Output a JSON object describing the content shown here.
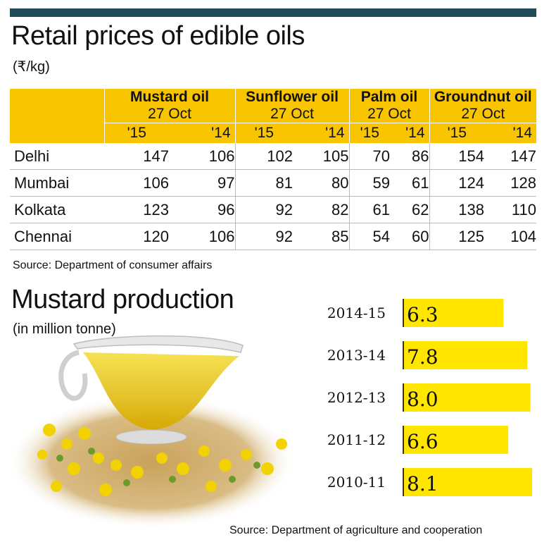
{
  "table": {
    "title": "Retail prices of edible oils",
    "unit": "(₹/kg)",
    "date": "27 Oct",
    "oils": [
      "Mustard oil",
      "Sunflower oil",
      "Palm oil",
      "Groundnut oil"
    ],
    "years": [
      "'15",
      "'14"
    ],
    "rows": [
      {
        "city": "Delhi",
        "values": [
          "147",
          "106",
          "102",
          "105",
          "70",
          "86",
          "154",
          "147"
        ]
      },
      {
        "city": "Mumbai",
        "values": [
          "106",
          "97",
          "81",
          "80",
          "59",
          "61",
          "124",
          "128"
        ]
      },
      {
        "city": "Kolkata",
        "values": [
          "123",
          "96",
          "92",
          "82",
          "61",
          "62",
          "138",
          "110"
        ]
      },
      {
        "city": "Chennai",
        "values": [
          "120",
          "106",
          "92",
          "85",
          "54",
          "60",
          "125",
          "104"
        ]
      }
    ],
    "source": "Source: Department of consumer affairs"
  },
  "production": {
    "title": "Mustard production",
    "unit": "(in million tonne)",
    "source": "Source: Department of agriculture and cooperation"
  },
  "chart_data": {
    "type": "bar",
    "orientation": "horizontal",
    "categories": [
      "2014-15",
      "2013-14",
      "2012-13",
      "2011-12",
      "2010-11"
    ],
    "values": [
      6.3,
      7.8,
      8.0,
      6.6,
      8.1
    ],
    "value_labels": [
      "6.3",
      "7.8",
      "8.0",
      "6.6",
      "8.1"
    ],
    "title": "Mustard production",
    "ylabel": "(in million tonne)",
    "xlim": [
      0,
      8.1
    ],
    "bar_color": "#ffe600",
    "grid": false
  }
}
